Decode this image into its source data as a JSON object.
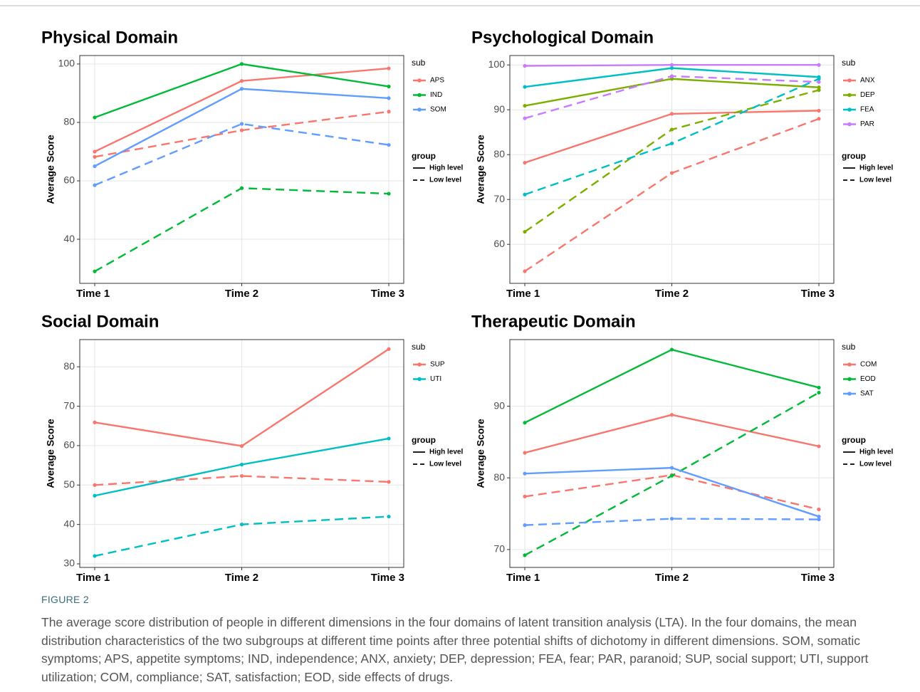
{
  "chart_data": [
    {
      "type": "line",
      "title": "Physical Domain",
      "y_label": "Average Score",
      "categories": [
        "Time 1",
        "Time 2",
        "Time 3"
      ],
      "ylim": [
        24.9,
        102.9
      ],
      "yticks": [
        40,
        60,
        80,
        100
      ],
      "grid": true,
      "legend_sub_title": "sub",
      "legend_group_title": "group",
      "groups": [
        {
          "name": "High level",
          "dash": "solid"
        },
        {
          "name": "Low level",
          "dash": "dashed"
        }
      ],
      "series": [
        {
          "name": "APS",
          "color": "#F8766D",
          "lines": [
            [
              70,
              94.2,
              98.5
            ],
            [
              68.2,
              77.3,
              83.7
            ]
          ]
        },
        {
          "name": "IND",
          "color": "#00BA38",
          "lines": [
            [
              81.7,
              100,
              92.3
            ],
            [
              29,
              57.5,
              55.6
            ]
          ]
        },
        {
          "name": "SOM",
          "color": "#619CFF",
          "lines": [
            [
              65,
              91.5,
              88.3
            ],
            [
              58.5,
              79.5,
              72.3
            ]
          ]
        }
      ]
    },
    {
      "type": "line",
      "title": "Psychological Domain",
      "y_label": "Average Score",
      "categories": [
        "Time 1",
        "Time 2",
        "Time 3"
      ],
      "ylim": [
        51.3,
        102.1
      ],
      "yticks": [
        60,
        70,
        80,
        90,
        100
      ],
      "grid": true,
      "legend_sub_title": "sub",
      "legend_group_title": "group",
      "groups": [
        {
          "name": "High level",
          "dash": "solid"
        },
        {
          "name": "Low level",
          "dash": "dashed"
        }
      ],
      "series": [
        {
          "name": "ANX",
          "color": "#F8766D",
          "lines": [
            [
              78.2,
              89.1,
              89.8
            ],
            [
              54,
              75.9,
              88
            ]
          ]
        },
        {
          "name": "DEP",
          "color": "#7CAE00",
          "lines": [
            [
              90.9,
              96.9,
              95
            ],
            [
              62.8,
              85.6,
              94.4
            ]
          ]
        },
        {
          "name": "FEA",
          "color": "#00BFC4",
          "lines": [
            [
              95.1,
              99.3,
              97.3
            ],
            [
              71.1,
              82.5,
              96.9
            ]
          ]
        },
        {
          "name": "PAR",
          "color": "#C77CFF",
          "lines": [
            [
              99.8,
              100,
              100
            ],
            [
              88.1,
              97.5,
              96.2
            ]
          ]
        }
      ]
    },
    {
      "type": "line",
      "title": "Social Domain",
      "y_label": "Average Score",
      "categories": [
        "Time 1",
        "Time 2",
        "Time 3"
      ],
      "ylim": [
        29.1,
        86.9
      ],
      "yticks": [
        30,
        40,
        50,
        60,
        70,
        80
      ],
      "grid": true,
      "legend_sub_title": "sub",
      "legend_group_title": "group",
      "groups": [
        {
          "name": "High level",
          "dash": "solid"
        },
        {
          "name": "Low level",
          "dash": "dashed"
        }
      ],
      "series": [
        {
          "name": "SUP",
          "color": "#F8766D",
          "lines": [
            [
              65.9,
              59.9,
              84.5
            ],
            [
              50,
              52.3,
              50.8
            ]
          ]
        },
        {
          "name": "UTI",
          "color": "#00BFC4",
          "lines": [
            [
              47.3,
              55.2,
              61.8
            ],
            [
              32,
              40,
              42
            ]
          ]
        }
      ]
    },
    {
      "type": "line",
      "title": "Therapeutic Domain",
      "y_label": "Average Score",
      "categories": [
        "Time 1",
        "Time 2",
        "Time 3"
      ],
      "ylim": [
        67.5,
        99.3
      ],
      "yticks": [
        70,
        80,
        90
      ],
      "grid": true,
      "legend_sub_title": "sub",
      "legend_group_title": "group",
      "groups": [
        {
          "name": "High level",
          "dash": "solid"
        },
        {
          "name": "Low level",
          "dash": "dashed"
        }
      ],
      "series": [
        {
          "name": "COM",
          "color": "#F8766D",
          "lines": [
            [
              83.5,
              88.8,
              84.4
            ],
            [
              77.4,
              80.4,
              75.6
            ]
          ]
        },
        {
          "name": "EOD",
          "color": "#00BA38",
          "lines": [
            [
              87.7,
              97.9,
              92.6
            ],
            [
              69.2,
              80.3,
              91.9
            ]
          ]
        },
        {
          "name": "SAT",
          "color": "#619CFF",
          "lines": [
            [
              80.6,
              81.4,
              74.6
            ],
            [
              73.4,
              74.3,
              74.2
            ]
          ]
        }
      ]
    }
  ],
  "figure": {
    "label": "FIGURE 2",
    "caption": "The average score distribution of people in different dimensions in the four domains of latent transition analysis (LTA). In the four domains, the mean distribution characteristics of the two subgroups at different time points after three potential shifts of dichotomy in different dimensions. SOM, somatic symptoms; APS, appetite symptoms; IND, independence; ANX, anxiety; DEP, depression; FEA, fear; PAR, paranoid; SUP, social support; UTI, support utilization; COM, compliance; SAT, satisfaction; EOD, side effects of drugs."
  }
}
